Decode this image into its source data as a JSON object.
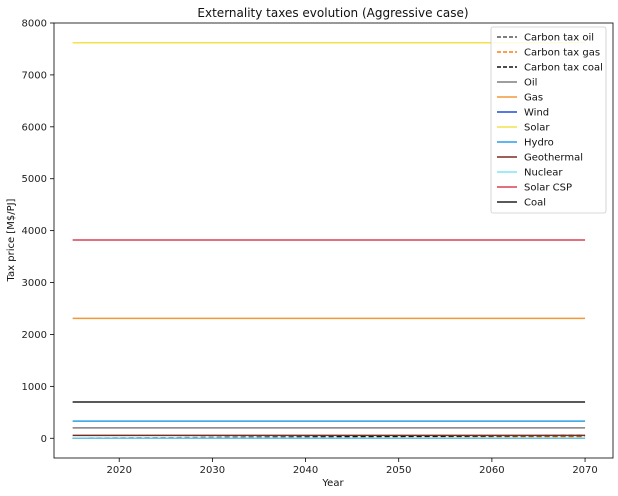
{
  "chart_data": {
    "type": "line",
    "title": "Externality taxes evolution (Aggressive case)",
    "xlabel": "Year",
    "ylabel": "Tax price [M$/PJ]",
    "xlim": [
      2013,
      2073
    ],
    "ylim": [
      -380,
      8000
    ],
    "xticks": [
      2020,
      2030,
      2040,
      2050,
      2060,
      2070
    ],
    "yticks": [
      0,
      1000,
      2000,
      3000,
      4000,
      5000,
      6000,
      7000,
      8000
    ],
    "grid": false,
    "legend_position": "top-right",
    "x": [
      2015,
      2070
    ],
    "series": [
      {
        "name": "Carbon tax oil",
        "values": [
          0,
          40
        ],
        "color": "#555555",
        "dash": "dashed"
      },
      {
        "name": "Carbon tax gas",
        "values": [
          0,
          25
        ],
        "color": "#ff7f0e",
        "dash": "dashed"
      },
      {
        "name": "Carbon tax coal",
        "values": [
          0,
          55
        ],
        "color": "#111111",
        "dash": "dashed"
      },
      {
        "name": "Oil",
        "values": [
          200,
          200
        ],
        "color": "#7f7f7f",
        "dash": "solid"
      },
      {
        "name": "Gas",
        "values": [
          2310,
          2310
        ],
        "color": "#f0983a",
        "dash": "solid"
      },
      {
        "name": "Wind",
        "values": [
          0,
          0
        ],
        "color": "#1f4fd8",
        "dash": "solid"
      },
      {
        "name": "Solar",
        "values": [
          7620,
          7620
        ],
        "color": "#f5e14a",
        "dash": "solid"
      },
      {
        "name": "Hydro",
        "values": [
          330,
          330
        ],
        "color": "#2b9fe8",
        "dash": "solid"
      },
      {
        "name": "Geothermal",
        "values": [
          55,
          55
        ],
        "color": "#7b2c22",
        "dash": "solid"
      },
      {
        "name": "Nuclear",
        "values": [
          5,
          5
        ],
        "color": "#7fe6f2",
        "dash": "solid"
      },
      {
        "name": "Solar CSP",
        "values": [
          3820,
          3820
        ],
        "color": "#d94055",
        "dash": "solid"
      },
      {
        "name": "Coal",
        "values": [
          700,
          700
        ],
        "color": "#222222",
        "dash": "solid"
      }
    ]
  }
}
